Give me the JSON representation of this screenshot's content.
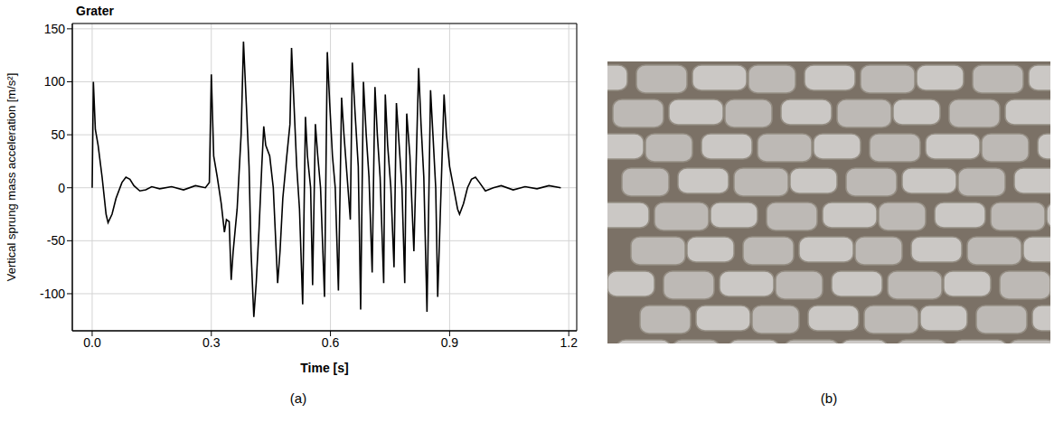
{
  "chart_data": {
    "type": "line",
    "title": "Grater",
    "panel_label": "(a)",
    "x_label": "Time [s]",
    "y_label": "Vertical sprung mass acceleration  [m/s²]",
    "grid": true,
    "color": "#000000",
    "xlim": [
      -0.05,
      1.22
    ],
    "xticks": [
      {
        "value": 0,
        "label": "0.0"
      },
      0.3,
      0.6,
      0.9,
      1.2
    ],
    "ylim": [
      -135,
      155
    ],
    "yticks": [
      -100,
      -50,
      0,
      50,
      100,
      150
    ],
    "x": [
      0,
      0.003,
      0.008,
      0.015,
      0.025,
      0.035,
      0.04,
      0.05,
      0.06,
      0.075,
      0.085,
      0.095,
      0.105,
      0.12,
      0.135,
      0.15,
      0.17,
      0.2,
      0.23,
      0.26,
      0.285,
      0.295,
      0.3,
      0.306,
      0.315,
      0.325,
      0.333,
      0.338,
      0.345,
      0.35,
      0.355,
      0.365,
      0.375,
      0.381,
      0.388,
      0.395,
      0.4,
      0.407,
      0.413,
      0.42,
      0.427,
      0.432,
      0.437,
      0.447,
      0.456,
      0.467,
      0.473,
      0.48,
      0.49,
      0.498,
      0.502,
      0.508,
      0.515,
      0.522,
      0.53,
      0.537,
      0.542,
      0.55,
      0.555,
      0.562,
      0.568,
      0.575,
      0.585,
      0.592,
      0.598,
      0.605,
      0.612,
      0.62,
      0.628,
      0.634,
      0.642,
      0.65,
      0.655,
      0.662,
      0.67,
      0.676,
      0.683,
      0.69,
      0.697,
      0.705,
      0.712,
      0.718,
      0.725,
      0.734,
      0.738,
      0.744,
      0.752,
      0.76,
      0.766,
      0.773,
      0.78,
      0.787,
      0.792,
      0.8,
      0.81,
      0.822,
      0.828,
      0.835,
      0.843,
      0.852,
      0.858,
      0.865,
      0.87,
      0.886,
      0.892,
      0.9,
      0.91,
      0.92,
      0.925,
      0.935,
      0.945,
      0.955,
      0.965,
      0.975,
      0.99,
      1.01,
      1.03,
      1.06,
      1.09,
      1.12,
      1.15,
      1.18
    ],
    "values": [
      0,
      100,
      55,
      40,
      10,
      -25,
      -33,
      -25,
      -10,
      5,
      10,
      8,
      2,
      -3,
      -2,
      1,
      -1,
      1,
      -2,
      2,
      0,
      5,
      107,
      30,
      10,
      -15,
      -42,
      -30,
      -32,
      -87,
      -60,
      -20,
      50,
      138,
      80,
      20,
      -60,
      -122,
      -90,
      -40,
      20,
      58,
      40,
      30,
      0,
      -90,
      -60,
      -10,
      30,
      60,
      132,
      80,
      20,
      -20,
      -110,
      67,
      30,
      0,
      -92,
      60,
      30,
      0,
      -103,
      128,
      80,
      30,
      0,
      -97,
      85,
      50,
      10,
      -30,
      118,
      70,
      20,
      -115,
      100,
      50,
      10,
      -80,
      95,
      50,
      10,
      -90,
      88,
      40,
      0,
      -75,
      80,
      40,
      0,
      -90,
      70,
      30,
      -60,
      113,
      60,
      10,
      -117,
      92,
      50,
      0,
      -103,
      88,
      50,
      20,
      0,
      -20,
      -25,
      -15,
      0,
      8,
      10,
      5,
      -3,
      0,
      2,
      -2,
      1,
      -1,
      2,
      0
    ]
  },
  "photo": {
    "panel_label": "(b)"
  }
}
